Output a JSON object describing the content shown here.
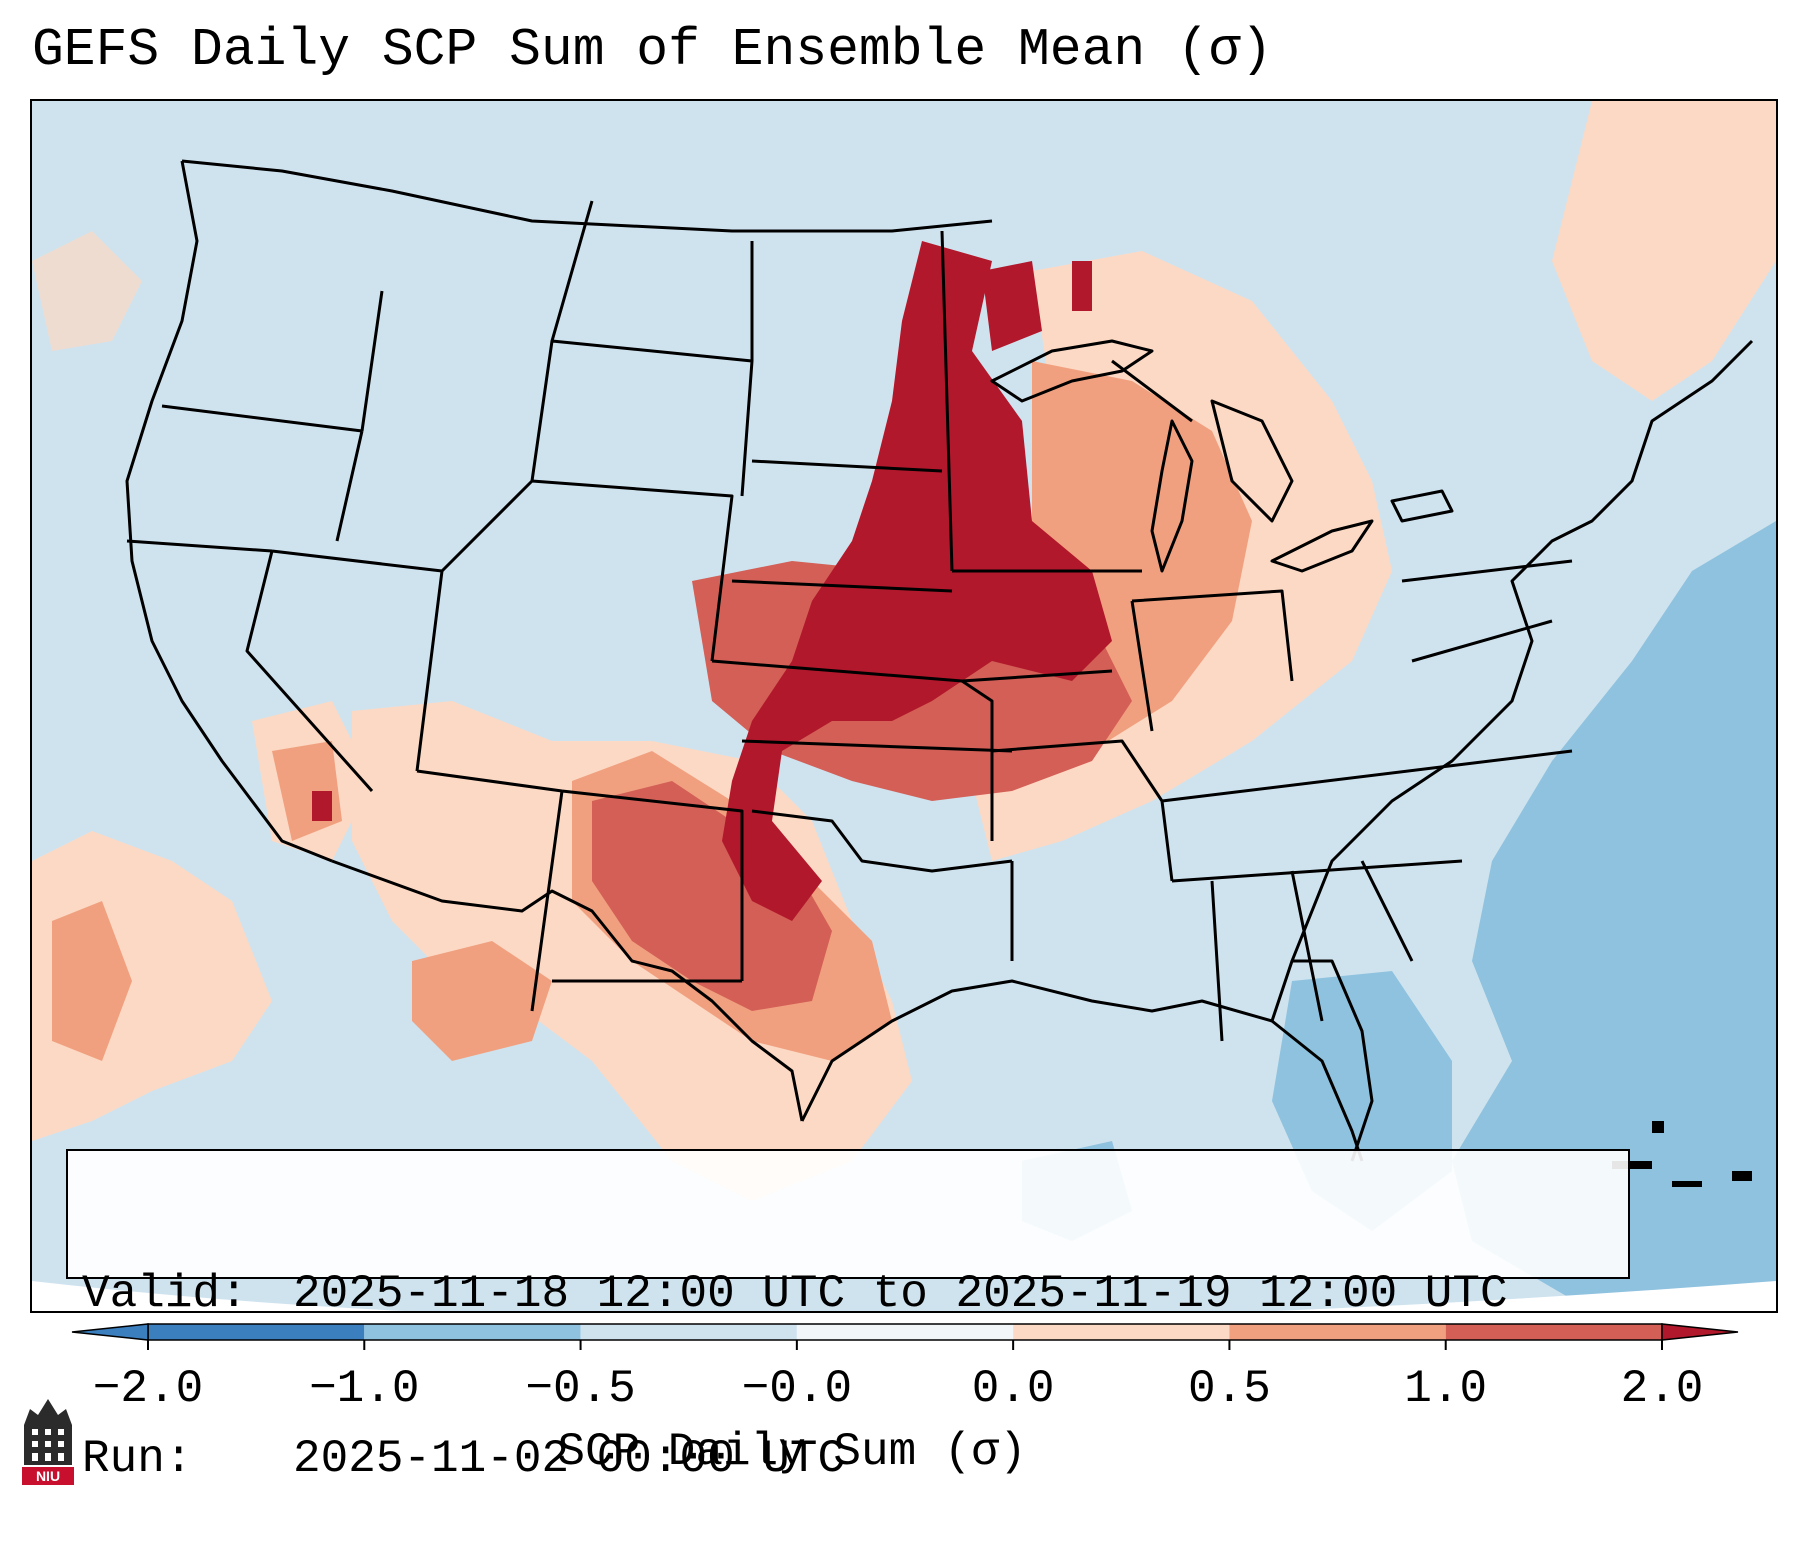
{
  "title": "GEFS Daily SCP Sum of Ensemble Mean (σ)",
  "info": {
    "valid_label": "Valid:",
    "valid_value": "2025-11-18 12:00 UTC to 2025-11-19 12:00 UTC",
    "run_label": "Run:",
    "run_value": "2025-11-02 00:00 UTC"
  },
  "colorbar": {
    "label": "SCP Daily Sum (σ)",
    "ticks": [
      "−2.0",
      "−1.0",
      "−0.5",
      "−0.0",
      "0.0",
      "0.5",
      "1.0",
      "2.0"
    ],
    "colors": [
      "#3b7fbf",
      "#8fc2de",
      "#cfe3ef",
      "#f2f6f9",
      "#fcd9c4",
      "#f1a07f",
      "#d35f56",
      "#b2182b"
    ],
    "extend": "both"
  },
  "map": {
    "region": "Continental United States",
    "background_color": "#cfe3ef",
    "anomaly_regions": [
      {
        "level": "high",
        "value": 2.0,
        "color": "#b2182b",
        "area": "Nebraska, Kansas, Iowa, Minnesota, eastern Dakotas, Oklahoma"
      },
      {
        "level": "moderate",
        "value": 1.0,
        "color": "#d35f56",
        "area": "Oklahoma, northern Texas, eastern New Mexico"
      },
      {
        "level": "weak",
        "value": 0.5,
        "color": "#f1a07f",
        "area": "Missouri, Illinois, Wisconsin, west Texas"
      },
      {
        "level": "slight",
        "value": 0.25,
        "color": "#fcd9c4",
        "area": "Great Lakes, Texas, Southwest, Pacific"
      },
      {
        "level": "negative",
        "value": -0.75,
        "color": "#8fc2de",
        "area": "Atlantic Ocean, Gulf of Mexico"
      }
    ]
  },
  "logo_text": "NIU"
}
